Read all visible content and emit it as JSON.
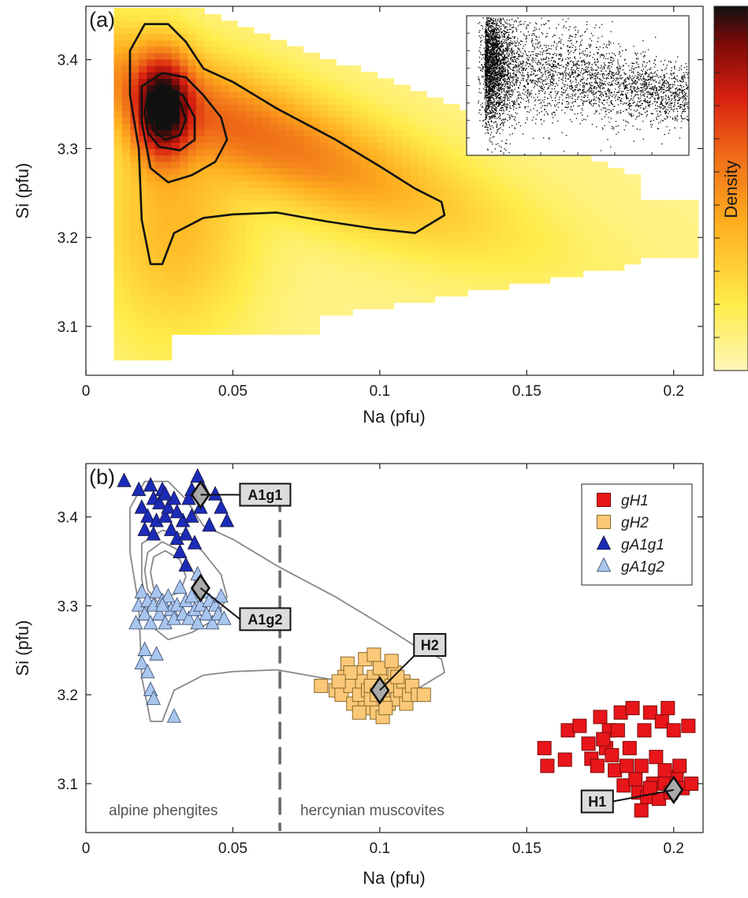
{
  "chart_data": [
    {
      "panel": "(a)",
      "type": "heatmap",
      "xlabel": "Na (pfu)",
      "ylabel": "Si (pfu)",
      "xlim": [
        0,
        0.21
      ],
      "ylim": [
        3.045,
        3.46
      ],
      "xticks": [
        "0",
        "0.05",
        "0.1",
        "0.15",
        "0.2"
      ],
      "yticks": [
        "3.1",
        "3.2",
        "3.3",
        "3.4"
      ],
      "colorbar_label": "Density",
      "colormap": [
        "#fff7b8",
        "#ffec4a",
        "#ffb020",
        "#f07018",
        "#d82010",
        "#7a0a08",
        "#111111"
      ],
      "density_peak": {
        "x": 0.026,
        "y": 3.345
      },
      "contours": [
        {
          "level": "outer",
          "points": [
            [
              0.022,
              3.17
            ],
            [
              0.019,
              3.22
            ],
            [
              0.018,
              3.3
            ],
            [
              0.015,
              3.36
            ],
            [
              0.015,
              3.41
            ],
            [
              0.02,
              3.44
            ],
            [
              0.028,
              3.44
            ],
            [
              0.034,
              3.42
            ],
            [
              0.04,
              3.39
            ],
            [
              0.05,
              3.375
            ],
            [
              0.065,
              3.345
            ],
            [
              0.085,
              3.31
            ],
            [
              0.1,
              3.28
            ],
            [
              0.112,
              3.255
            ],
            [
              0.121,
              3.24
            ],
            [
              0.122,
              3.225
            ],
            [
              0.112,
              3.205
            ],
            [
              0.098,
              3.21
            ],
            [
              0.082,
              3.218
            ],
            [
              0.065,
              3.228
            ],
            [
              0.05,
              3.226
            ],
            [
              0.04,
              3.222
            ],
            [
              0.03,
              3.205
            ],
            [
              0.026,
              3.17
            ],
            [
              0.022,
              3.17
            ]
          ]
        },
        {
          "level": "mid",
          "points": [
            [
              0.019,
              3.33
            ],
            [
              0.019,
              3.37
            ],
            [
              0.026,
              3.385
            ],
            [
              0.034,
              3.38
            ],
            [
              0.04,
              3.36
            ],
            [
              0.046,
              3.335
            ],
            [
              0.048,
              3.31
            ],
            [
              0.044,
              3.285
            ],
            [
              0.036,
              3.27
            ],
            [
              0.028,
              3.262
            ],
            [
              0.022,
              3.278
            ],
            [
              0.019,
              3.33
            ]
          ]
        },
        {
          "level": "inner",
          "points": [
            [
              0.02,
              3.34
            ],
            [
              0.021,
              3.36
            ],
            [
              0.026,
              3.372
            ],
            [
              0.033,
              3.36
            ],
            [
              0.037,
              3.335
            ],
            [
              0.037,
              3.31
            ],
            [
              0.032,
              3.298
            ],
            [
              0.025,
              3.302
            ],
            [
              0.021,
              3.318
            ],
            [
              0.02,
              3.34
            ]
          ]
        },
        {
          "level": "core",
          "points": [
            [
              0.022,
              3.338
            ],
            [
              0.023,
              3.355
            ],
            [
              0.027,
              3.362
            ],
            [
              0.032,
              3.352
            ],
            [
              0.034,
              3.333
            ],
            [
              0.032,
              3.315
            ],
            [
              0.027,
              3.31
            ],
            [
              0.023,
              3.32
            ],
            [
              0.022,
              3.338
            ]
          ]
        }
      ],
      "inset": "scatter of the same data"
    },
    {
      "panel": "(b)",
      "type": "scatter",
      "xlabel": "Na (pfu)",
      "ylabel": "Si (pfu)",
      "xlim": [
        0,
        0.21
      ],
      "ylim": [
        3.045,
        3.46
      ],
      "xticks": [
        "0",
        "0.05",
        "0.1",
        "0.15",
        "0.2"
      ],
      "yticks": [
        "3.1",
        "3.2",
        "3.3",
        "3.4"
      ],
      "divider_x": 0.066,
      "region_labels": [
        "alpine phengites",
        "hercynian muscovites"
      ],
      "legend": [
        "gH1",
        "gH2",
        "gA1g1",
        "gA1g2"
      ],
      "series": [
        {
          "name": "gH1",
          "marker": "square",
          "color": "#e8161a",
          "points": [
            [
              0.156,
              3.14
            ],
            [
              0.157,
              3.12
            ],
            [
              0.163,
              3.127
            ],
            [
              0.164,
              3.16
            ],
            [
              0.168,
              3.165
            ],
            [
              0.171,
              3.145
            ],
            [
              0.172,
              3.128
            ],
            [
              0.174,
              3.12
            ],
            [
              0.175,
              3.175
            ],
            [
              0.177,
              3.14
            ],
            [
              0.178,
              3.16
            ],
            [
              0.179,
              3.132
            ],
            [
              0.18,
              3.115
            ],
            [
              0.182,
              3.18
            ],
            [
              0.183,
              3.098
            ],
            [
              0.184,
              3.12
            ],
            [
              0.185,
              3.14
            ],
            [
              0.186,
              3.185
            ],
            [
              0.187,
              3.105
            ],
            [
              0.188,
              3.09
            ],
            [
              0.189,
              3.12
            ],
            [
              0.19,
              3.16
            ],
            [
              0.191,
              3.085
            ],
            [
              0.192,
              3.18
            ],
            [
              0.193,
              3.1
            ],
            [
              0.194,
              3.13
            ],
            [
              0.195,
              3.083
            ],
            [
              0.196,
              3.17
            ],
            [
              0.197,
              3.1
            ],
            [
              0.198,
              3.185
            ],
            [
              0.199,
              3.09
            ],
            [
              0.2,
              3.16
            ],
            [
              0.201,
              3.108
            ],
            [
              0.202,
              3.12
            ],
            [
              0.203,
              3.095
            ],
            [
              0.205,
              3.165
            ],
            [
              0.206,
              3.1
            ],
            [
              0.192,
              3.095
            ],
            [
              0.189,
              3.07
            ],
            [
              0.197,
              3.115
            ],
            [
              0.181,
              3.16
            ],
            [
              0.176,
              3.15
            ]
          ]
        },
        {
          "name": "gH2",
          "marker": "square",
          "color": "#fbc878",
          "points": [
            [
              0.08,
              3.21
            ],
            [
              0.085,
              3.205
            ],
            [
              0.087,
              3.2
            ],
            [
              0.088,
              3.22
            ],
            [
              0.089,
              3.235
            ],
            [
              0.09,
              3.21
            ],
            [
              0.091,
              3.19
            ],
            [
              0.092,
              3.225
            ],
            [
              0.093,
              3.2
            ],
            [
              0.094,
              3.215
            ],
            [
              0.095,
              3.24
            ],
            [
              0.095,
              3.185
            ],
            [
              0.096,
              3.205
            ],
            [
              0.097,
              3.195
            ],
            [
              0.098,
              3.22
            ],
            [
              0.099,
              3.18
            ],
            [
              0.1,
              3.23
            ],
            [
              0.101,
              3.2
            ],
            [
              0.102,
              3.215
            ],
            [
              0.103,
              3.19
            ],
            [
              0.104,
              3.21
            ],
            [
              0.105,
              3.225
            ],
            [
              0.106,
              3.195
            ],
            [
              0.107,
              3.205
            ],
            [
              0.108,
              3.215
            ],
            [
              0.109,
              3.19
            ],
            [
              0.11,
              3.2
            ],
            [
              0.111,
              3.21
            ],
            [
              0.113,
              3.2
            ],
            [
              0.115,
              3.2
            ],
            [
              0.098,
              3.245
            ],
            [
              0.093,
              3.18
            ],
            [
              0.101,
              3.175
            ],
            [
              0.09,
              3.225
            ],
            [
              0.104,
              3.238
            ],
            [
              0.086,
              3.215
            ],
            [
              0.097,
              3.21
            ],
            [
              0.102,
              3.185
            ],
            [
              0.106,
              3.22
            ],
            [
              0.099,
              3.2
            ]
          ]
        },
        {
          "name": "gA1g1",
          "marker": "triangle",
          "color": "#1b2bb8",
          "points": [
            [
              0.013,
              3.44
            ],
            [
              0.018,
              3.43
            ],
            [
              0.019,
              3.41
            ],
            [
              0.02,
              3.385
            ],
            [
              0.021,
              3.4
            ],
            [
              0.022,
              3.435
            ],
            [
              0.023,
              3.42
            ],
            [
              0.024,
              3.395
            ],
            [
              0.025,
              3.415
            ],
            [
              0.026,
              3.43
            ],
            [
              0.027,
              3.4
            ],
            [
              0.028,
              3.41
            ],
            [
              0.029,
              3.385
            ],
            [
              0.03,
              3.42
            ],
            [
              0.031,
              3.375
            ],
            [
              0.032,
              3.36
            ],
            [
              0.033,
              3.395
            ],
            [
              0.034,
              3.38
            ],
            [
              0.035,
              3.42
            ],
            [
              0.036,
              3.4
            ],
            [
              0.037,
              3.37
            ],
            [
              0.038,
              3.445
            ],
            [
              0.039,
              3.41
            ],
            [
              0.04,
              3.43
            ],
            [
              0.042,
              3.39
            ],
            [
              0.044,
              3.425
            ],
            [
              0.046,
              3.41
            ],
            [
              0.048,
              3.395
            ],
            [
              0.034,
              3.345
            ],
            [
              0.036,
              3.43
            ],
            [
              0.023,
              3.38
            ],
            [
              0.031,
              3.405
            ],
            [
              0.027,
              3.425
            ]
          ]
        },
        {
          "name": "gA1g2",
          "marker": "triangle",
          "color": "#a9c6ee",
          "points": [
            [
              0.017,
              3.28
            ],
            [
              0.018,
              3.3
            ],
            [
              0.019,
              3.315
            ],
            [
              0.02,
              3.29
            ],
            [
              0.021,
              3.305
            ],
            [
              0.022,
              3.28
            ],
            [
              0.023,
              3.3
            ],
            [
              0.024,
              3.315
            ],
            [
              0.025,
              3.29
            ],
            [
              0.026,
              3.305
            ],
            [
              0.027,
              3.28
            ],
            [
              0.028,
              3.31
            ],
            [
              0.029,
              3.295
            ],
            [
              0.03,
              3.285
            ],
            [
              0.031,
              3.3
            ],
            [
              0.032,
              3.32
            ],
            [
              0.033,
              3.29
            ],
            [
              0.034,
              3.305
            ],
            [
              0.035,
              3.285
            ],
            [
              0.036,
              3.31
            ],
            [
              0.037,
              3.295
            ],
            [
              0.038,
              3.28
            ],
            [
              0.039,
              3.3
            ],
            [
              0.04,
              3.315
            ],
            [
              0.041,
              3.29
            ],
            [
              0.042,
              3.305
            ],
            [
              0.043,
              3.28
            ],
            [
              0.044,
              3.3
            ],
            [
              0.045,
              3.29
            ],
            [
              0.046,
              3.31
            ],
            [
              0.047,
              3.285
            ],
            [
              0.038,
              3.335
            ],
            [
              0.02,
              3.25
            ],
            [
              0.019,
              3.235
            ],
            [
              0.024,
              3.245
            ],
            [
              0.021,
              3.225
            ],
            [
              0.022,
              3.205
            ],
            [
              0.023,
              3.195
            ],
            [
              0.03,
              3.175
            ],
            [
              0.026,
              3.3
            ]
          ]
        },
        {
          "name": "A1g1",
          "marker": "diamond",
          "color": "#aaaaaa",
          "points": [
            [
              0.039,
              3.425
            ]
          ]
        },
        {
          "name": "A1g2",
          "marker": "diamond",
          "color": "#aaaaaa",
          "points": [
            [
              0.039,
              3.32
            ]
          ]
        },
        {
          "name": "H2",
          "marker": "diamond",
          "color": "#aaaaaa",
          "points": [
            [
              0.1,
              3.205
            ]
          ]
        },
        {
          "name": "H1",
          "marker": "diamond",
          "color": "#aaaaaa",
          "points": [
            [
              0.2,
              3.093
            ]
          ]
        }
      ],
      "callouts": [
        {
          "label": "A1g1",
          "at": [
            0.039,
            3.425
          ],
          "box": [
            0.061,
            3.425
          ]
        },
        {
          "label": "A1g2",
          "at": [
            0.039,
            3.32
          ],
          "box": [
            0.061,
            3.285
          ]
        },
        {
          "label": "H2",
          "at": [
            0.1,
            3.205
          ],
          "box": [
            0.117,
            3.256
          ]
        },
        {
          "label": "H1",
          "at": [
            0.2,
            3.093
          ],
          "box": [
            0.174,
            3.08
          ]
        }
      ]
    }
  ]
}
